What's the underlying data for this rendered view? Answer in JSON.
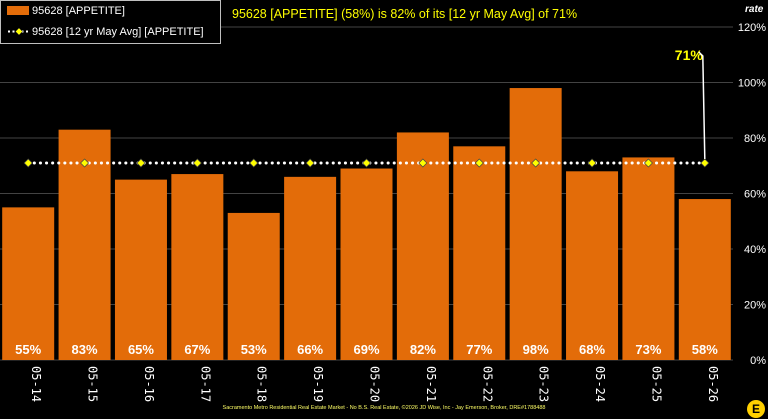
{
  "chart_data": {
    "type": "bar",
    "title": "95628 [APPETITE] (58%) is 82% of its [12 yr May Avg] of 71%",
    "categories": [
      "05-14",
      "05-15",
      "05-16",
      "05-17",
      "05-18",
      "05-19",
      "05-20",
      "05-21",
      "05-22",
      "05-23",
      "05-24",
      "05-25",
      "05-26"
    ],
    "series": [
      {
        "name": "95628 [APPETITE]",
        "type": "bar",
        "color": "#e36c09",
        "values": [
          55,
          83,
          65,
          67,
          53,
          66,
          69,
          82,
          77,
          98,
          68,
          73,
          58
        ],
        "labels": [
          "55%",
          "83%",
          "65%",
          "67%",
          "53%",
          "66%",
          "69%",
          "82%",
          "77%",
          "98%",
          "68%",
          "73%",
          "58%"
        ]
      },
      {
        "name": "95628 [12 yr May Avg] [APPETITE]",
        "type": "line",
        "color": "#ffff00",
        "values": [
          71,
          71,
          71,
          71,
          71,
          71,
          71,
          71,
          71,
          71,
          71,
          71,
          71
        ]
      }
    ],
    "avg_callout": "71%",
    "ylabel": "rate",
    "ylim": [
      0,
      120
    ],
    "yticks": [
      "0%",
      "20%",
      "40%",
      "60%",
      "80%",
      "100%",
      "120%"
    ],
    "grid": true,
    "legend": "top-left"
  },
  "footer": "Sacramento Metro Residential Real Estate Market - No B.S. Real Estate, ©2026 JD Wise, Inc - Jay Emerson, Broker, DRE#1788488",
  "logo_letter": "E"
}
